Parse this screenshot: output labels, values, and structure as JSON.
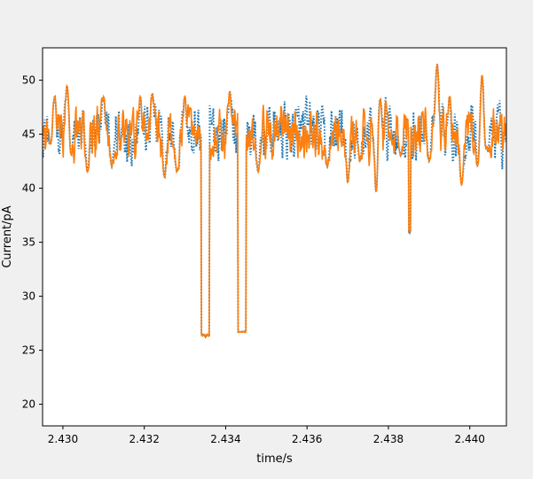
{
  "chart_data": {
    "type": "line",
    "title": "",
    "xlabel": "time/s",
    "ylabel": "Current/pA",
    "xlim": [
      2.4295,
      2.4409
    ],
    "ylim": [
      18,
      53
    ],
    "x_ticks": [
      2.43,
      2.432,
      2.434,
      2.436,
      2.438,
      2.44
    ],
    "x_tick_labels": [
      "2.430",
      "2.432",
      "2.434",
      "2.436",
      "2.438",
      "2.440"
    ],
    "y_ticks": [
      20,
      25,
      30,
      35,
      40,
      45,
      50
    ],
    "y_tick_labels": [
      "20",
      "25",
      "30",
      "35",
      "40",
      "45",
      "50"
    ],
    "grid": false,
    "legend": "none",
    "colors": {
      "raw": "#1f77b4",
      "fit": "#ff7f0e",
      "figure_bg": "#f0f0f0",
      "axes_bg": "#ffffff"
    },
    "series": [
      {
        "style": "dotted",
        "color": "#1f77b4",
        "baseline": 45.2,
        "noise": 1.9,
        "x_start": 2.4295,
        "x_end": 2.4409,
        "n_points": 900
      },
      {
        "style": "solid",
        "color": "#ff7f0e",
        "baseline": 45.2,
        "noise": 1.7,
        "x_start": 2.4295,
        "x_end": 2.4409,
        "n_points": 900
      }
    ],
    "events": [
      {
        "x_start": 2.4334,
        "x_end": 2.4336,
        "level": 26.4,
        "noise": 0.2
      },
      {
        "x_start": 2.4343,
        "x_end": 2.4345,
        "level": 26.7,
        "noise": 0.1
      },
      {
        "x_start": 2.4385,
        "x_end": 2.43855,
        "level": 36.0,
        "noise": 0.3
      }
    ],
    "dips": [
      {
        "x": 2.4297,
        "level": 44.0
      },
      {
        "x": 2.4302,
        "level": 43.0
      },
      {
        "x": 2.4306,
        "level": 41.5
      },
      {
        "x": 2.4312,
        "level": 42.0
      },
      {
        "x": 2.4325,
        "level": 41.0
      },
      {
        "x": 2.4328,
        "level": 41.5
      },
      {
        "x": 2.4348,
        "level": 41.5
      },
      {
        "x": 2.4365,
        "level": 42.0
      },
      {
        "x": 2.437,
        "level": 40.5
      },
      {
        "x": 2.4373,
        "level": 42.5
      },
      {
        "x": 2.4377,
        "level": 39.5
      },
      {
        "x": 2.4383,
        "level": 43.0
      },
      {
        "x": 2.439,
        "level": 42.5
      },
      {
        "x": 2.4398,
        "level": 40.3
      },
      {
        "x": 2.4402,
        "level": 42.0
      },
      {
        "x": 2.4404,
        "level": 43.5
      }
    ],
    "peaks": [
      {
        "x": 2.4298,
        "level": 48.5
      },
      {
        "x": 2.4301,
        "level": 49.5
      },
      {
        "x": 2.431,
        "level": 48.5
      },
      {
        "x": 2.4319,
        "level": 48.5
      },
      {
        "x": 2.4322,
        "level": 48.8
      },
      {
        "x": 2.433,
        "level": 48.5
      },
      {
        "x": 2.4341,
        "level": 49.0
      },
      {
        "x": 2.4378,
        "level": 48.3
      },
      {
        "x": 2.4392,
        "level": 51.5
      },
      {
        "x": 2.4395,
        "level": 48.5
      },
      {
        "x": 2.4403,
        "level": 50.5
      }
    ]
  }
}
